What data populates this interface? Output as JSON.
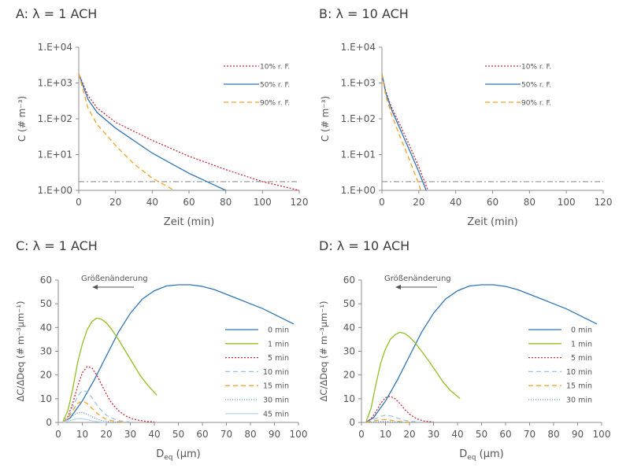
{
  "chart_data": [
    {
      "panel": "A",
      "type": "line",
      "title": "A: λ = 1 ACH",
      "xlabel": "Zeit (min)",
      "ylabel": "C (# m⁻³)",
      "x_ticks": [
        "0",
        "20",
        "40",
        "60",
        "80",
        "100",
        "120"
      ],
      "y_ticks": [
        "1.E+00",
        "1.E+01",
        "1.E+02",
        "1.E+03",
        "1.E+04"
      ],
      "xlim": [
        0,
        120
      ],
      "ylim": [
        1,
        10000
      ],
      "y_scale": "log",
      "grid": false,
      "legend_position": "top-right",
      "threshold": 1.75,
      "series": [
        {
          "name": "10% r. F.",
          "color": "#cc2936",
          "dash": "2,2",
          "x": [
            0,
            5,
            10,
            20,
            40,
            60,
            80,
            100,
            120
          ],
          "y": [
            1800,
            450,
            200,
            80,
            25,
            9,
            3.8,
            1.75,
            1
          ]
        },
        {
          "name": "50% r. F.",
          "color": "#2e75b6",
          "dash": "",
          "x": [
            0,
            5,
            10,
            20,
            40,
            60,
            80
          ],
          "y": [
            1800,
            350,
            150,
            55,
            11,
            3,
            1
          ]
        },
        {
          "name": "90% r. F.",
          "color": "#f4a324",
          "dash": "6,4",
          "x": [
            0,
            5,
            10,
            20,
            30,
            40,
            52
          ],
          "y": [
            1800,
            200,
            70,
            18,
            5.5,
            2.2,
            1
          ]
        }
      ]
    },
    {
      "panel": "B",
      "type": "line",
      "title": "B: λ = 10 ACH",
      "xlabel": "Zeit (min)",
      "ylabel": "C (# m⁻³)",
      "x_ticks": [
        "0",
        "20",
        "40",
        "60",
        "80",
        "100",
        "120"
      ],
      "y_ticks": [
        "1.E+00",
        "1.E+01",
        "1.E+02",
        "1.E+03",
        "1.E+04"
      ],
      "xlim": [
        0,
        120
      ],
      "ylim": [
        1,
        10000
      ],
      "y_scale": "log",
      "grid": false,
      "legend_position": "top-right",
      "threshold": 1.75,
      "series": [
        {
          "name": "10% r. F.",
          "color": "#cc2936",
          "dash": "2,2",
          "x": [
            0,
            2,
            5,
            10,
            15,
            20,
            25
          ],
          "y": [
            1800,
            600,
            220,
            65,
            18,
            4.5,
            1
          ]
        },
        {
          "name": "50% r. F.",
          "color": "#2e75b6",
          "dash": "",
          "x": [
            0,
            2,
            5,
            10,
            15,
            20,
            24
          ],
          "y": [
            1800,
            550,
            190,
            50,
            13,
            3.3,
            1
          ]
        },
        {
          "name": "90% r. F.",
          "color": "#f4a324",
          "dash": "6,4",
          "x": [
            0,
            2,
            5,
            10,
            15,
            20,
            21
          ],
          "y": [
            1800,
            450,
            140,
            30,
            7,
            1.5,
            1
          ]
        }
      ]
    },
    {
      "panel": "C",
      "type": "line",
      "title": "C: λ = 1 ACH",
      "xlabel": "D",
      "xlabel_sub": "eq",
      "xlabel_unit": " (μm)",
      "ylabel": "ΔC/ΔDeq (# m⁻³μm⁻¹)",
      "x_ticks": [
        "0",
        "10",
        "20",
        "30",
        "40",
        "50",
        "60",
        "70",
        "80",
        "90",
        "100"
      ],
      "y_ticks": [
        "0",
        "10",
        "20",
        "30",
        "40",
        "50",
        "60"
      ],
      "xlim": [
        0,
        100
      ],
      "ylim": [
        0,
        60
      ],
      "grid": false,
      "legend_position": "center-right",
      "annotation": "Größenänderung",
      "series": [
        {
          "name": "0 min",
          "color": "#2e75b6",
          "dash": "",
          "x": [
            2,
            5,
            10,
            15,
            20,
            25,
            30,
            35,
            40,
            45,
            50,
            55,
            60,
            65,
            70,
            75,
            80,
            85,
            90,
            95,
            98
          ],
          "y": [
            0.2,
            2,
            9,
            18,
            28,
            38,
            46,
            52,
            55.5,
            57.5,
            58,
            58,
            57.3,
            56,
            54,
            52,
            50,
            48,
            45.5,
            43,
            41.5
          ]
        },
        {
          "name": "1 min",
          "color": "#92c020",
          "dash": "",
          "x": [
            2,
            4,
            6,
            8,
            10,
            12,
            14,
            16,
            18,
            20,
            22,
            25,
            28,
            31,
            34,
            37,
            41
          ],
          "y": [
            0.5,
            5,
            14,
            25,
            33,
            39,
            42.5,
            44,
            43.5,
            42,
            39.5,
            35,
            30,
            25,
            20,
            16,
            11.5
          ]
        },
        {
          "name": "5 min",
          "color": "#cc2936",
          "dash": "2,2",
          "x": [
            2,
            4,
            6,
            8,
            10,
            12,
            14,
            16,
            18,
            20,
            22,
            25,
            28,
            31,
            34,
            37,
            40
          ],
          "y": [
            0.2,
            2.5,
            8,
            15,
            21,
            23.5,
            23,
            20,
            16,
            12,
            8.5,
            5,
            2.8,
            1.5,
            0.8,
            0.4,
            0.2
          ]
        },
        {
          "name": "10 min",
          "color": "#9dc3e6",
          "dash": "6,4",
          "x": [
            2,
            4,
            6,
            8,
            10,
            12,
            14,
            16,
            18,
            20,
            23,
            26,
            30
          ],
          "y": [
            0.2,
            2,
            6.5,
            11,
            13.5,
            13,
            10.5,
            7.5,
            5,
            3,
            1.5,
            0.6,
            0.2
          ]
        },
        {
          "name": "15 min",
          "color": "#f4a324",
          "dash": "6,4",
          "x": [
            2,
            4,
            6,
            8,
            10,
            12,
            14,
            16,
            18,
            20,
            24,
            28
          ],
          "y": [
            0.1,
            1.5,
            5,
            8,
            9,
            8,
            6,
            4,
            2.5,
            1.3,
            0.4,
            0.1
          ]
        },
        {
          "name": "30 min",
          "color": "#5b9bd5",
          "dash": "1,2",
          "x": [
            2,
            4,
            6,
            8,
            10,
            12,
            14,
            16,
            18,
            21,
            25
          ],
          "y": [
            0.1,
            1,
            2.8,
            4,
            4.2,
            3.5,
            2.4,
            1.5,
            0.8,
            0.3,
            0.1
          ]
        },
        {
          "name": "45 min",
          "color": "#bdd7ee",
          "dash": "",
          "x": [
            2,
            4,
            6,
            8,
            10,
            12,
            14,
            17,
            20
          ],
          "y": [
            0.05,
            0.4,
            1.1,
            1.6,
            1.6,
            1.2,
            0.7,
            0.3,
            0.1
          ]
        }
      ]
    },
    {
      "panel": "D",
      "type": "line",
      "title": "D: λ = 10 ACH",
      "xlabel": "D",
      "xlabel_sub": "eq",
      "xlabel_unit": " (μm)",
      "ylabel": "ΔC/ΔDeq (# m⁻³μm⁻¹)",
      "x_ticks": [
        "0",
        "10",
        "20",
        "30",
        "40",
        "50",
        "60",
        "70",
        "80",
        "90",
        "100"
      ],
      "y_ticks": [
        "0",
        "10",
        "20",
        "30",
        "40",
        "50",
        "60"
      ],
      "xlim": [
        0,
        100
      ],
      "ylim": [
        0,
        60
      ],
      "grid": false,
      "legend_position": "center-right",
      "annotation": "Größenänderung",
      "series": [
        {
          "name": "0 min",
          "color": "#2e75b6",
          "dash": "",
          "x": [
            2,
            5,
            10,
            15,
            20,
            25,
            30,
            35,
            40,
            45,
            50,
            55,
            60,
            65,
            70,
            75,
            80,
            85,
            90,
            95,
            98
          ],
          "y": [
            0.2,
            2,
            9,
            18,
            28,
            38,
            46,
            52,
            55.5,
            57.5,
            58,
            58,
            57.3,
            56,
            54,
            52,
            50,
            48,
            45.5,
            43,
            41.5
          ]
        },
        {
          "name": "1 min",
          "color": "#92c020",
          "dash": "",
          "x": [
            2,
            4,
            6,
            8,
            10,
            12,
            14,
            16,
            18,
            20,
            22,
            25,
            28,
            31,
            34,
            37,
            41
          ],
          "y": [
            0.5,
            6,
            16,
            25,
            31,
            35,
            37,
            38,
            37.5,
            36,
            34,
            30,
            26,
            21.5,
            17,
            13.5,
            10
          ]
        },
        {
          "name": "5 min",
          "color": "#cc2936",
          "dash": "2,2",
          "x": [
            2,
            4,
            6,
            8,
            10,
            12,
            14,
            16,
            18,
            20,
            23,
            26,
            30
          ],
          "y": [
            0.1,
            1.5,
            4.5,
            8,
            10.5,
            11,
            10,
            8,
            5.5,
            3.5,
            1.5,
            0.6,
            0.2
          ]
        },
        {
          "name": "10 min",
          "color": "#9dc3e6",
          "dash": "6,4",
          "x": [
            2,
            4,
            6,
            8,
            10,
            12,
            14,
            16,
            18,
            21,
            25
          ],
          "y": [
            0.1,
            0.6,
            1.6,
            2.6,
            3,
            2.8,
            2.2,
            1.5,
            0.9,
            0.4,
            0.1
          ]
        },
        {
          "name": "15 min",
          "color": "#f4a324",
          "dash": "6,4",
          "x": [
            2,
            4,
            6,
            8,
            10,
            12,
            14,
            17,
            20
          ],
          "y": [
            0.05,
            0.3,
            0.8,
            1.1,
            1.2,
            1,
            0.6,
            0.3,
            0.1
          ]
        },
        {
          "name": "30 min",
          "color": "#5b9bd5",
          "dash": "1,2",
          "x": [
            2,
            4,
            6,
            8,
            10,
            12,
            14,
            17
          ],
          "y": [
            0.02,
            0.1,
            0.25,
            0.35,
            0.35,
            0.25,
            0.15,
            0.05
          ]
        }
      ]
    }
  ]
}
